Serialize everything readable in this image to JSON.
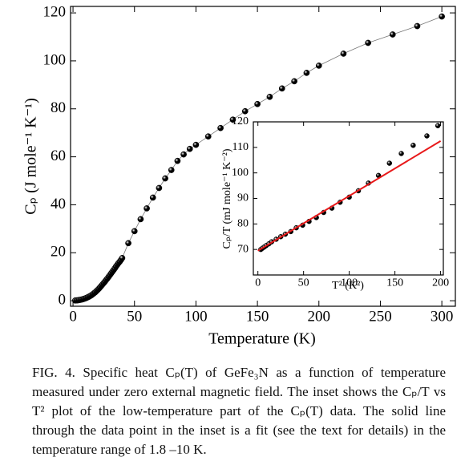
{
  "chart_data": [
    {
      "type": "scatter",
      "xlabel": "Temperature (K)",
      "ylabel": "Cₚ (J mole⁻¹ K⁻¹)",
      "xlim": [
        -2,
        311
      ],
      "ylim": [
        -2.3,
        122.7
      ],
      "xticks": [
        0,
        50,
        100,
        150,
        200,
        250,
        300
      ],
      "yticks": [
        0,
        20,
        40,
        60,
        80,
        100,
        120
      ],
      "series": [
        {
          "mode": "markers+line",
          "color": "#000000",
          "line_color": "#777777",
          "x": [
            1.8,
            3,
            4,
            5,
            6,
            7,
            8,
            9,
            10,
            11,
            12,
            13,
            14,
            15,
            16,
            17,
            18,
            19,
            20,
            21,
            22,
            23,
            24,
            25,
            26,
            27,
            28,
            29,
            30,
            31,
            32,
            33,
            34,
            35,
            36,
            37,
            38,
            39,
            40,
            45,
            50,
            55,
            60,
            65,
            70,
            75,
            80,
            85,
            90,
            95,
            100,
            110,
            120,
            130,
            140,
            150,
            160,
            170,
            180,
            190,
            200,
            220,
            240,
            260,
            280,
            300
          ],
          "values": [
            0.1,
            0.15,
            0.2,
            0.3,
            0.4,
            0.5,
            0.65,
            0.8,
            1.0,
            1.2,
            1.45,
            1.7,
            2.0,
            2.3,
            2.7,
            3.1,
            3.5,
            4.0,
            4.5,
            5.0,
            5.6,
            6.2,
            6.8,
            7.4,
            8.0,
            8.7,
            9.3,
            10.0,
            10.7,
            11.4,
            12.1,
            12.8,
            13.5,
            14.3,
            15.0,
            15.7,
            16.3,
            17.0,
            17.8,
            24,
            29,
            34,
            38.5,
            43,
            47,
            51,
            54.5,
            58.3,
            61,
            63.3,
            65,
            68.5,
            72,
            75.5,
            79,
            82,
            85,
            88.5,
            91.5,
            95,
            98,
            103,
            107.5,
            111,
            114.5,
            118.5
          ]
        }
      ]
    },
    {
      "type": "scatter",
      "xlabel": "T² (K²)",
      "ylabel": "Cₚ/T (mJ mole⁻¹ K⁻²)",
      "xlim": [
        -5,
        203
      ],
      "ylim": [
        60,
        120
      ],
      "xticks": [
        0,
        50,
        100,
        150,
        200
      ],
      "yticks": [
        70,
        80,
        90,
        100,
        110,
        120
      ],
      "series": [
        {
          "mode": "markers",
          "color": "#000000",
          "x": [
            3.2,
            5,
            7,
            9,
            12,
            15,
            20,
            25,
            30,
            36,
            42,
            49,
            56,
            64,
            72,
            81,
            90,
            100,
            110,
            121,
            132,
            144,
            157,
            170,
            185,
            197
          ],
          "values": [
            70,
            70.5,
            71,
            71.5,
            72.2,
            73,
            74,
            75,
            76,
            77,
            78.5,
            79.5,
            81,
            82.5,
            84.5,
            86.2,
            88.5,
            90.5,
            93,
            96,
            99,
            103.8,
            107.6,
            110.8,
            114.5,
            118.5
          ]
        },
        {
          "mode": "line",
          "color": "#e8191a",
          "x": [
            0,
            200
          ],
          "values": [
            69.5,
            112.5
          ]
        }
      ]
    }
  ],
  "caption": "FIG. 4.  Specific heat Cₚ(T) of GeFe₃N as a function of temperature measured under zero external magnetic field. The inset shows the Cₚ/T vs T² plot of the low-temperature part of the Cₚ(T) data. The solid line through the data point in the inset is a fit (see the text for details) in the temperature range of 1.8 –10 K."
}
